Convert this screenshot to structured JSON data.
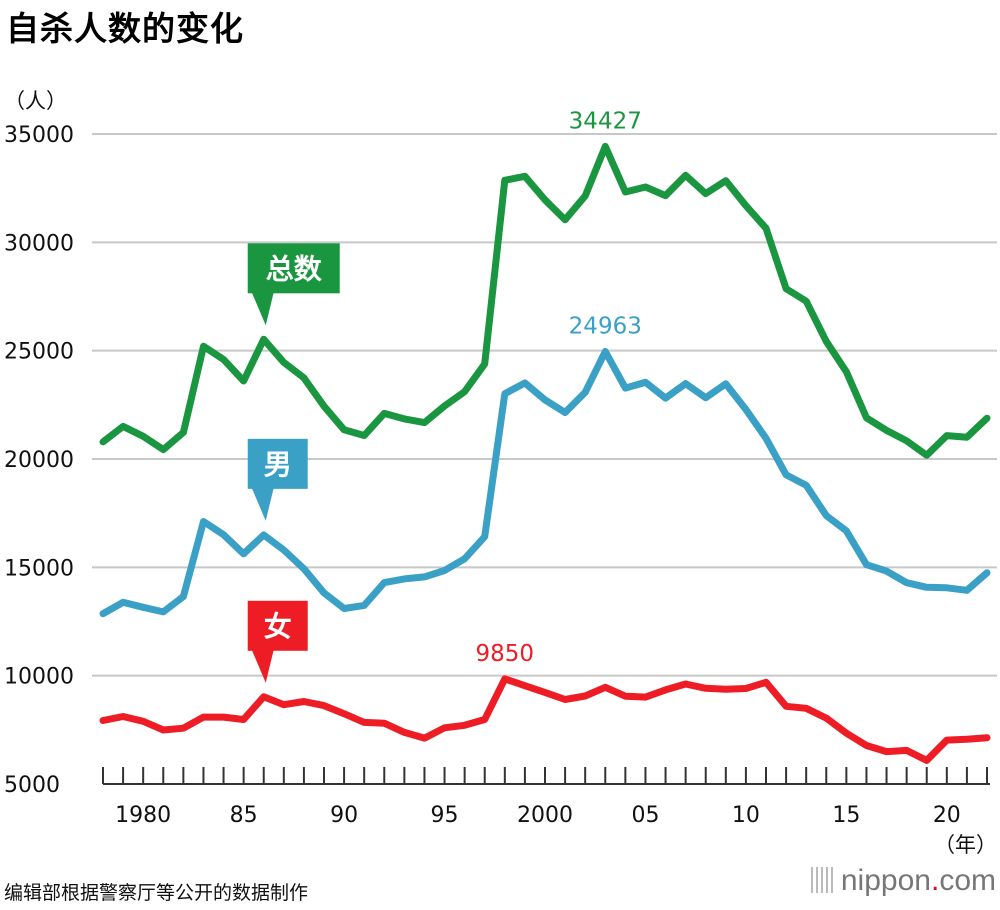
{
  "chart_data": {
    "type": "line",
    "title": "自杀人数的变化",
    "ylabel": "（人）",
    "xlabel": "（年）",
    "ylim": [
      5000,
      35000
    ],
    "yticks": [
      5000,
      10000,
      15000,
      20000,
      25000,
      30000,
      35000
    ],
    "xlim": [
      1978,
      2022
    ],
    "x_tick_labels": [
      {
        "year": 1980,
        "label": "1980"
      },
      {
        "year": 1985,
        "label": "85"
      },
      {
        "year": 1990,
        "label": "90"
      },
      {
        "year": 1995,
        "label": "95"
      },
      {
        "year": 2000,
        "label": "2000"
      },
      {
        "year": 2005,
        "label": "05"
      },
      {
        "year": 2010,
        "label": "10"
      },
      {
        "year": 2015,
        "label": "15"
      },
      {
        "year": 2020,
        "label": "20"
      }
    ],
    "x": [
      1978,
      1979,
      1980,
      1981,
      1982,
      1983,
      1984,
      1985,
      1986,
      1987,
      1988,
      1989,
      1990,
      1991,
      1992,
      1993,
      1994,
      1995,
      1996,
      1997,
      1998,
      1999,
      2000,
      2001,
      2002,
      2003,
      2004,
      2005,
      2006,
      2007,
      2008,
      2009,
      2010,
      2011,
      2012,
      2013,
      2014,
      2015,
      2016,
      2017,
      2018,
      2019,
      2020,
      2021,
      2022
    ],
    "series": [
      {
        "name": "总数",
        "color": "#1a9641",
        "values": [
          20788,
          21503,
          21048,
          20434,
          21228,
          25202,
          24596,
          23599,
          25524,
          24460,
          23742,
          22436,
          21346,
          21084,
          22104,
          21851,
          21679,
          22445,
          23104,
          24391,
          32863,
          33048,
          31957,
          31042,
          32143,
          34427,
          32325,
          32552,
          32155,
          33093,
          32249,
          32845,
          31690,
          30651,
          27858,
          27283,
          25427,
          24025,
          21897,
          21321,
          20840,
          20169,
          21081,
          21007,
          21881
        ]
      },
      {
        "name": "男",
        "color": "#3aa0c6",
        "values": [
          12859,
          13386,
          13155,
          12942,
          13654,
          17116,
          16508,
          15624,
          16499,
          15802,
          14934,
          13818,
          13102,
          13242,
          14296,
          14468,
          14560,
          14853,
          15393,
          16416,
          23013,
          23512,
          22727,
          22144,
          23080,
          24963,
          23272,
          23540,
          22813,
          23478,
          22831,
          23472,
          22283,
          20955,
          19273,
          18787,
          17386,
          16681,
          15121,
          14826,
          14290,
          14078,
          14055,
          13939,
          14746
        ]
      },
      {
        "name": "女",
        "color": "#ee1c25",
        "values": [
          7929,
          8117,
          7893,
          7492,
          7574,
          8086,
          8088,
          7975,
          9025,
          8658,
          8808,
          8618,
          8244,
          7842,
          7808,
          7383,
          7119,
          7592,
          7711,
          7975,
          9850,
          9536,
          9230,
          8898,
          9063,
          9464,
          9053,
          9012,
          9342,
          9615,
          9418,
          9373,
          9407,
          9696,
          8585,
          8496,
          8041,
          7344,
          6776,
          6495,
          6550,
          6091,
          7026,
          7068,
          7135
        ]
      }
    ],
    "series_labels": [
      {
        "series": "总数",
        "text": "总数",
        "anchor_year": 1986
      },
      {
        "series": "男",
        "text": "男",
        "anchor_year": 1986
      },
      {
        "series": "女",
        "text": "女",
        "anchor_year": 1986
      }
    ],
    "annotations": [
      {
        "series": "总数",
        "year": 2003,
        "text": "34427"
      },
      {
        "series": "男",
        "year": 2003,
        "text": "24963"
      },
      {
        "series": "女",
        "year": 1998,
        "text": "9850"
      }
    ],
    "grid": true,
    "legend": "inline"
  },
  "source_note": "编辑部根据警察厅等公开的数据制作",
  "brand": {
    "name": "nippon",
    "dot": ".",
    "suffix": "com"
  }
}
